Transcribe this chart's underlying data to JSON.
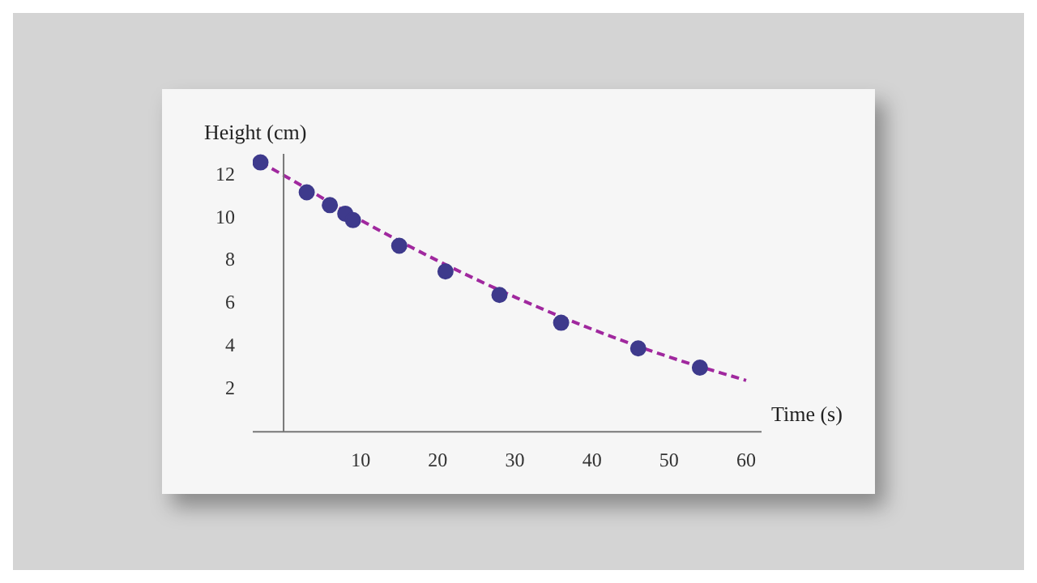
{
  "chart_data": {
    "type": "scatter",
    "xlabel": "Time (s)",
    "ylabel": "Height (cm)",
    "series": [
      {
        "color": "#3e3a8c",
        "x": [
          -3,
          3,
          6,
          8,
          9,
          15,
          21,
          28,
          36,
          46,
          54
        ],
        "values": [
          12.6,
          11.2,
          10.6,
          10.2,
          9.9,
          8.7,
          7.5,
          6.4,
          5.1,
          3.9,
          3.0
        ]
      },
      {
        "type": "line",
        "color": "#a0289e",
        "line_style": "dashed",
        "marker": "none",
        "x": [
          -3,
          0,
          10,
          20,
          30,
          40,
          50,
          60
        ],
        "values": [
          12.6,
          12.0,
          9.9,
          8.0,
          6.3,
          4.8,
          3.5,
          2.4
        ]
      }
    ],
    "xlim": [
      -4,
      62
    ],
    "ylim": [
      0,
      13
    ],
    "xticks": [
      10,
      20,
      30,
      40,
      50,
      60
    ],
    "yticks": [
      2,
      4,
      6,
      8,
      10,
      12
    ],
    "grid": false,
    "legend": false,
    "marker": "circle"
  }
}
